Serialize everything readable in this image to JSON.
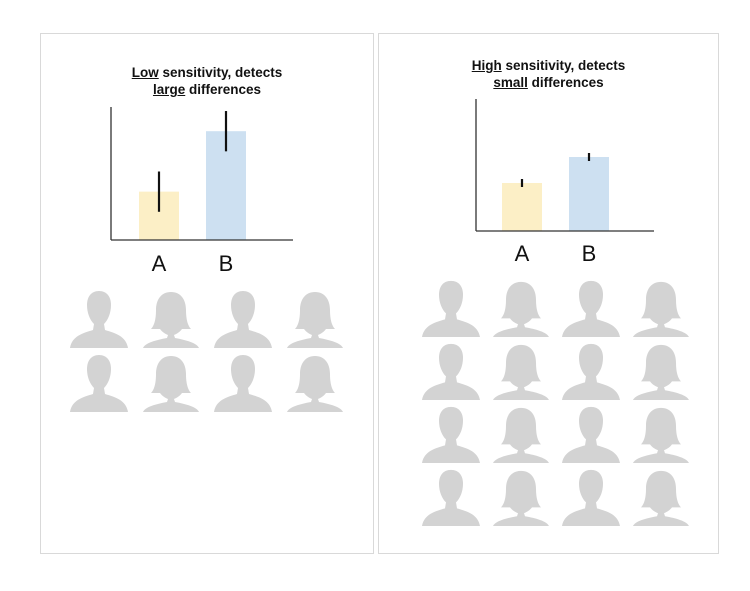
{
  "panels": [
    {
      "title_line1_emph": "Low",
      "title_line1_rest": " sensitivity, detects",
      "title_line2_emph": "large",
      "title_line2_rest": " differences",
      "people_rows": 2,
      "people_cols": 4
    },
    {
      "title_line1_emph": "High",
      "title_line1_rest": " sensitivity, detects",
      "title_line2_emph": "small",
      "title_line2_rest": " differences",
      "people_rows": 4,
      "people_cols": 4
    }
  ],
  "chart_data": [
    {
      "type": "bar",
      "title": "Low sensitivity, detects large differences",
      "categories": [
        "A",
        "B"
      ],
      "values": [
        1.2,
        2.7
      ],
      "error": [
        0.5,
        0.5
      ],
      "colors": [
        "#fcefc6",
        "#cde0f1"
      ],
      "ylim": [
        0,
        3.3
      ],
      "grid": false
    },
    {
      "type": "bar",
      "title": "High sensitivity, detects small differences",
      "categories": [
        "A",
        "B"
      ],
      "values": [
        1.2,
        1.85
      ],
      "error": [
        0.1,
        0.1
      ],
      "colors": [
        "#fcefc6",
        "#cde0f1"
      ],
      "ylim": [
        0,
        3.3
      ],
      "grid": false
    }
  ],
  "colors": {
    "person": "#d3d3d3",
    "axis": "#333333",
    "errorbar": "#111111"
  }
}
